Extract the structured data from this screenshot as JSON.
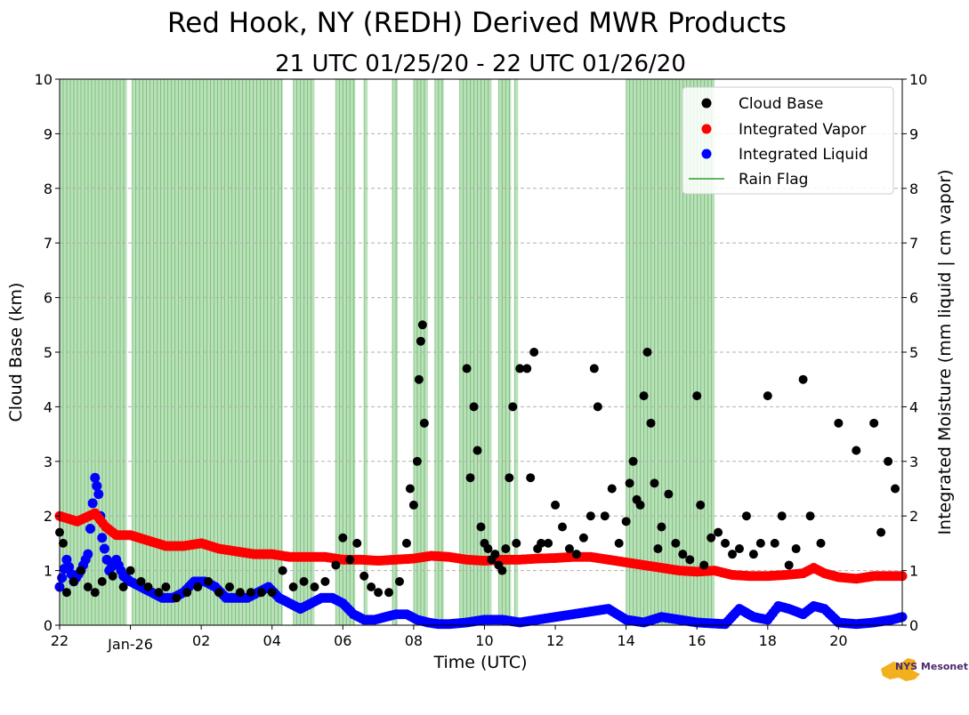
{
  "chart_data": {
    "type": "scatter",
    "title": "Red Hook, NY (REDH) Derived MWR Products",
    "subtitle": "21 UTC 01/25/20 - 22 UTC 01/26/20",
    "xlabel": "Time (UTC)",
    "ylabel_left": "Cloud Base (km)",
    "ylabel_right": "Integrated Moisture (mm liquid | cm vapor)",
    "xlim": [
      22.0,
      45.8
    ],
    "ylim": [
      0,
      10
    ],
    "x_ticks": [
      {
        "x": 22,
        "label": "22"
      },
      {
        "x": 24,
        "label": "Jan-26"
      },
      {
        "x": 26,
        "label": "02"
      },
      {
        "x": 28,
        "label": "04"
      },
      {
        "x": 30,
        "label": "06"
      },
      {
        "x": 32,
        "label": "08"
      },
      {
        "x": 34,
        "label": "10"
      },
      {
        "x": 36,
        "label": "12"
      },
      {
        "x": 38,
        "label": "14"
      },
      {
        "x": 40,
        "label": "16"
      },
      {
        "x": 42,
        "label": "18"
      },
      {
        "x": 44,
        "label": "20"
      }
    ],
    "y_ticks": [
      "0",
      "1",
      "2",
      "3",
      "4",
      "5",
      "6",
      "7",
      "8",
      "9",
      "10"
    ],
    "grid": "horizontal dashed",
    "legend_position": "top-right",
    "logo_text": "NYS Mesonet",
    "colors": {
      "cloud_base": "#000000",
      "integrated_vapor": "#ff0000",
      "integrated_liquid": "#0000ff",
      "rain_flag": "#2ca02c"
    },
    "rain_flag_intervals": [
      [
        22.0,
        23.9
      ],
      [
        24.05,
        28.3
      ],
      [
        28.6,
        29.2
      ],
      [
        29.8,
        30.35
      ],
      [
        30.6,
        30.7
      ],
      [
        31.4,
        31.55
      ],
      [
        32.0,
        32.4
      ],
      [
        32.6,
        32.85
      ],
      [
        33.3,
        34.2
      ],
      [
        34.4,
        34.75
      ],
      [
        34.85,
        34.95
      ],
      [
        38.0,
        40.5
      ]
    ],
    "series": [
      {
        "name": "Cloud Base",
        "x": [
          22.0,
          22.1,
          22.2,
          22.4,
          22.6,
          22.8,
          23.0,
          23.2,
          23.5,
          23.8,
          24.0,
          24.3,
          24.5,
          24.8,
          25.0,
          25.3,
          25.6,
          25.9,
          26.2,
          26.5,
          26.8,
          27.1,
          27.4,
          27.7,
          28.0,
          28.3,
          28.6,
          28.9,
          29.2,
          29.5,
          29.8,
          30.0,
          30.2,
          30.4,
          30.6,
          30.8,
          31.0,
          31.3,
          31.6,
          31.8,
          31.9,
          32.0,
          32.1,
          32.15,
          32.2,
          32.25,
          32.3,
          33.5,
          33.6,
          33.7,
          33.8,
          33.9,
          34.0,
          34.1,
          34.2,
          34.3,
          34.4,
          34.5,
          34.6,
          34.7,
          34.8,
          34.9,
          35.0,
          35.2,
          35.3,
          35.4,
          35.5,
          35.6,
          35.8,
          36.0,
          36.2,
          36.4,
          36.6,
          36.8,
          37.0,
          37.1,
          37.2,
          37.4,
          37.6,
          37.8,
          38.0,
          38.1,
          38.2,
          38.3,
          38.4,
          38.5,
          38.6,
          38.7,
          38.8,
          38.9,
          39.0,
          39.2,
          39.4,
          39.6,
          39.8,
          40.0,
          40.1,
          40.2,
          40.4,
          40.6,
          40.8,
          41.0,
          41.2,
          41.4,
          41.6,
          41.8,
          42.0,
          42.2,
          42.4,
          42.6,
          42.8,
          43.0,
          43.2,
          43.5,
          44.0,
          44.5,
          45.0,
          45.2,
          45.4,
          45.6
        ],
        "values": [
          1.7,
          1.5,
          0.6,
          0.8,
          1.0,
          0.7,
          0.6,
          0.8,
          0.9,
          0.7,
          1.0,
          0.8,
          0.7,
          0.6,
          0.7,
          0.5,
          0.6,
          0.7,
          0.8,
          0.6,
          0.7,
          0.6,
          0.6,
          0.6,
          0.6,
          1.0,
          0.7,
          0.8,
          0.7,
          0.8,
          1.1,
          1.6,
          1.2,
          1.5,
          0.9,
          0.7,
          0.6,
          0.6,
          0.8,
          1.5,
          2.5,
          2.2,
          3.0,
          4.5,
          5.2,
          5.5,
          3.7,
          4.7,
          2.7,
          4.0,
          3.2,
          1.8,
          1.5,
          1.4,
          1.2,
          1.3,
          1.1,
          1.0,
          1.4,
          2.7,
          4.0,
          1.5,
          4.7,
          4.7,
          2.7,
          5.0,
          1.4,
          1.5,
          1.5,
          2.2,
          1.8,
          1.4,
          1.3,
          1.6,
          2.0,
          4.7,
          4.0,
          2.0,
          2.5,
          1.5,
          1.9,
          2.6,
          3.0,
          2.3,
          2.2,
          4.2,
          5.0,
          3.7,
          2.6,
          1.4,
          1.8,
          2.4,
          1.5,
          1.3,
          1.2,
          4.2,
          2.2,
          1.1,
          1.6,
          1.7,
          1.5,
          1.3,
          1.4,
          2.0,
          1.3,
          1.5,
          4.2,
          1.5,
          2.0,
          1.1,
          1.4,
          4.5,
          2.0,
          1.5,
          3.7,
          3.2,
          3.7,
          1.7,
          3.0,
          2.5
        ]
      },
      {
        "name": "Integrated Vapor",
        "x": [
          22.0,
          22.5,
          23.0,
          23.3,
          23.6,
          24.0,
          24.5,
          25.0,
          25.5,
          26.0,
          26.5,
          27.0,
          27.5,
          28.0,
          28.5,
          29.0,
          29.5,
          30.0,
          30.5,
          31.0,
          31.5,
          32.0,
          32.5,
          33.0,
          33.5,
          34.0,
          34.5,
          35.0,
          35.5,
          36.0,
          36.5,
          37.0,
          37.5,
          38.0,
          38.5,
          39.0,
          39.5,
          40.0,
          40.5,
          41.0,
          41.5,
          42.0,
          42.5,
          43.0,
          43.3,
          43.6,
          44.0,
          44.5,
          45.0,
          45.8
        ],
        "values": [
          2.0,
          1.9,
          2.05,
          1.8,
          1.65,
          1.65,
          1.55,
          1.45,
          1.45,
          1.5,
          1.4,
          1.35,
          1.3,
          1.3,
          1.25,
          1.25,
          1.25,
          1.2,
          1.2,
          1.18,
          1.2,
          1.22,
          1.27,
          1.25,
          1.2,
          1.18,
          1.2,
          1.2,
          1.22,
          1.23,
          1.25,
          1.25,
          1.2,
          1.15,
          1.1,
          1.05,
          1.0,
          0.98,
          1.0,
          0.92,
          0.9,
          0.9,
          0.92,
          0.95,
          1.05,
          0.95,
          0.88,
          0.85,
          0.9,
          0.9
        ]
      },
      {
        "name": "Integrated Liquid",
        "x": [
          22.0,
          22.2,
          22.4,
          22.6,
          22.8,
          23.0,
          23.1,
          23.2,
          23.4,
          23.6,
          23.8,
          24.0,
          24.3,
          24.6,
          24.9,
          25.2,
          25.5,
          25.8,
          26.1,
          26.4,
          26.7,
          27.0,
          27.3,
          27.6,
          27.9,
          28.2,
          28.5,
          28.8,
          29.1,
          29.4,
          29.7,
          30.0,
          30.3,
          30.6,
          30.9,
          31.2,
          31.5,
          31.8,
          32.1,
          32.4,
          32.7,
          33.0,
          33.5,
          34.0,
          34.5,
          35.0,
          35.5,
          36.0,
          36.5,
          37.0,
          37.5,
          38.0,
          38.5,
          39.0,
          39.5,
          40.0,
          40.5,
          40.8,
          41.2,
          41.6,
          42.0,
          42.3,
          42.6,
          43.0,
          43.3,
          43.6,
          44.0,
          44.5,
          45.0,
          45.5,
          45.8
        ],
        "values": [
          0.7,
          1.2,
          0.8,
          1.0,
          1.3,
          2.7,
          2.4,
          1.6,
          1.0,
          1.2,
          0.9,
          0.8,
          0.7,
          0.6,
          0.5,
          0.5,
          0.6,
          0.8,
          0.8,
          0.7,
          0.5,
          0.5,
          0.5,
          0.6,
          0.7,
          0.5,
          0.4,
          0.3,
          0.4,
          0.5,
          0.5,
          0.4,
          0.2,
          0.1,
          0.1,
          0.15,
          0.2,
          0.2,
          0.1,
          0.05,
          0.02,
          0.02,
          0.05,
          0.1,
          0.1,
          0.05,
          0.1,
          0.15,
          0.2,
          0.25,
          0.3,
          0.1,
          0.05,
          0.15,
          0.1,
          0.05,
          0.03,
          0.02,
          0.3,
          0.15,
          0.1,
          0.35,
          0.3,
          0.2,
          0.35,
          0.3,
          0.05,
          0.02,
          0.05,
          0.1,
          0.15
        ]
      },
      {
        "name": "Rain Flag"
      }
    ]
  }
}
